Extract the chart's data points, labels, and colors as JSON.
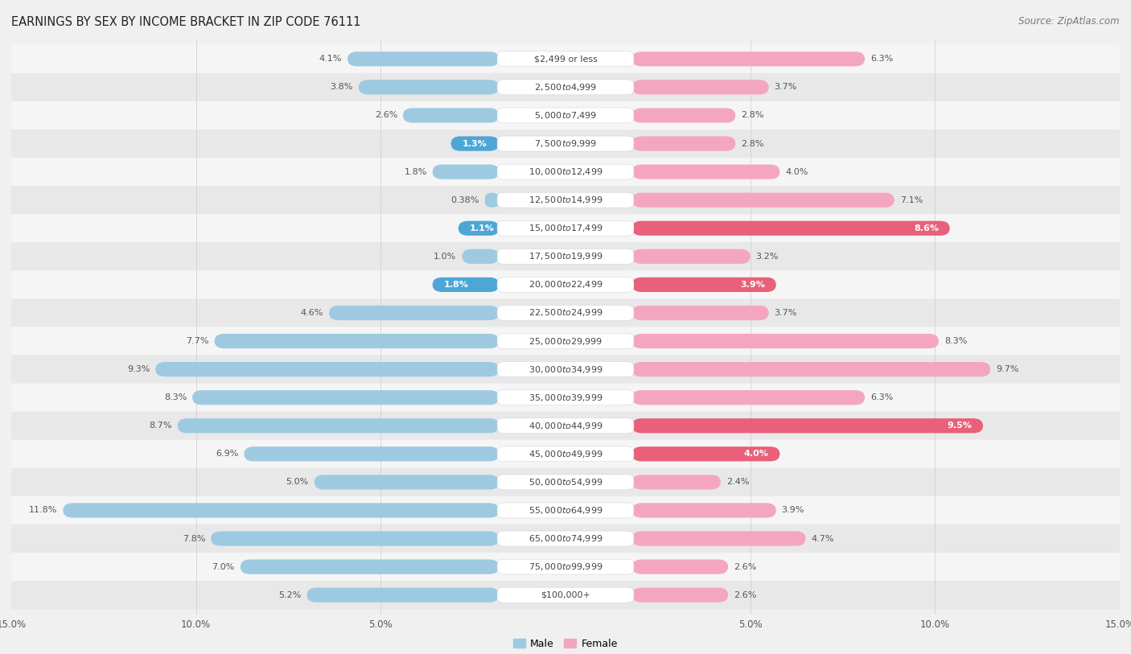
{
  "title": "EARNINGS BY SEX BY INCOME BRACKET IN ZIP CODE 76111",
  "source": "Source: ZipAtlas.com",
  "categories": [
    "$2,499 or less",
    "$2,500 to $4,999",
    "$5,000 to $7,499",
    "$7,500 to $9,999",
    "$10,000 to $12,499",
    "$12,500 to $14,999",
    "$15,000 to $17,499",
    "$17,500 to $19,999",
    "$20,000 to $22,499",
    "$22,500 to $24,999",
    "$25,000 to $29,999",
    "$30,000 to $34,999",
    "$35,000 to $39,999",
    "$40,000 to $44,999",
    "$45,000 to $49,999",
    "$50,000 to $54,999",
    "$55,000 to $64,999",
    "$65,000 to $74,999",
    "$75,000 to $99,999",
    "$100,000+"
  ],
  "male_values": [
    4.1,
    3.8,
    2.6,
    1.3,
    1.8,
    0.38,
    1.1,
    1.0,
    1.8,
    4.6,
    7.7,
    9.3,
    8.3,
    8.7,
    6.9,
    5.0,
    11.8,
    7.8,
    7.0,
    5.2
  ],
  "female_values": [
    6.3,
    3.7,
    2.8,
    2.8,
    4.0,
    7.1,
    8.6,
    3.2,
    3.9,
    3.7,
    8.3,
    9.7,
    6.3,
    9.5,
    4.0,
    2.4,
    3.9,
    4.7,
    2.6,
    2.6
  ],
  "male_color": "#9ecae1",
  "female_color": "#f4a6c0",
  "male_label": "Male",
  "female_label": "Female",
  "highlight_male_color": "#4da6d6",
  "highlight_female_color": "#e8607a",
  "highlight_male": [
    11,
    13,
    16
  ],
  "highlight_female": [
    5,
    6,
    11,
    13
  ],
  "xlim": 15.0,
  "row_color_even": "#f5f5f5",
  "row_color_odd": "#e8e8e8",
  "background_color": "#f0f0f0",
  "title_fontsize": 10.5,
  "source_fontsize": 8.5,
  "label_fontsize": 8.0,
  "category_fontsize": 8.0,
  "axis_label_fontsize": 8.5
}
